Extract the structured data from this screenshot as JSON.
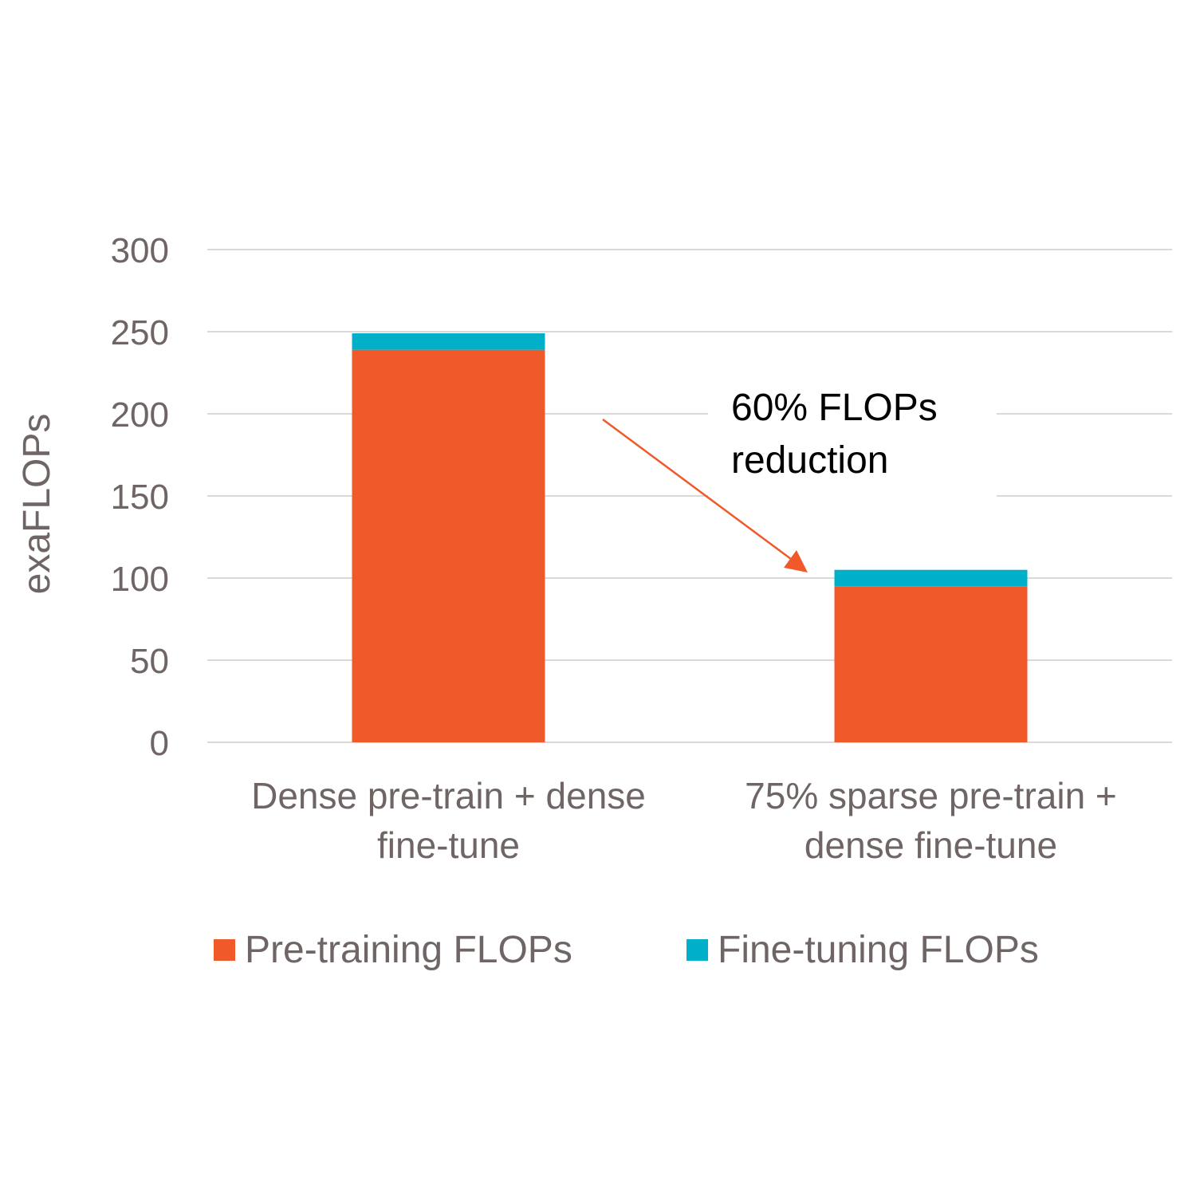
{
  "chart_data": {
    "type": "bar",
    "stacked": true,
    "title": "",
    "xlabel": "",
    "ylabel": "exaFLOPs",
    "ylim": [
      0,
      300
    ],
    "yticks": [
      0,
      50,
      100,
      150,
      200,
      250,
      300
    ],
    "grid": true,
    "legend_position": "bottom",
    "categories": [
      [
        "Dense pre-train + dense",
        "fine-tune"
      ],
      [
        "75% sparse pre-train +",
        "dense fine-tune"
      ]
    ],
    "series": [
      {
        "name": "Pre-training FLOPs",
        "color": "#F05A2B",
        "values": [
          239,
          95
        ]
      },
      {
        "name": "Fine-tuning FLOPs",
        "color": "#00B0C8",
        "values": [
          10,
          10
        ]
      }
    ],
    "annotation": {
      "lines": [
        "60% FLOPs",
        "reduction"
      ],
      "arrow_color": "#F05A2B"
    }
  }
}
